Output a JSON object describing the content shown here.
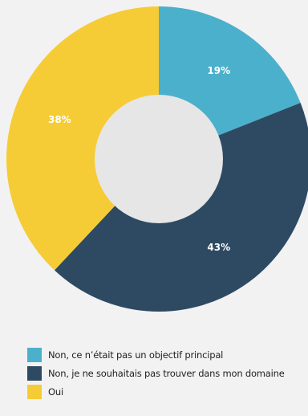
{
  "chart_data": {
    "type": "pie",
    "donut": true,
    "legend_position": "bottom-left",
    "slices": [
      {
        "label": "Non, ce n’était pas un objectif principal",
        "value": 19,
        "display": "19%",
        "color": "#4bb0cc"
      },
      {
        "label": "Non, je ne souhaitais pas trouver dans mon domaine",
        "value": 43,
        "display": "43%",
        "color": "#2e4a62"
      },
      {
        "label": "Oui",
        "value": 38,
        "display": "38%",
        "color": "#f5cc35"
      }
    ]
  }
}
